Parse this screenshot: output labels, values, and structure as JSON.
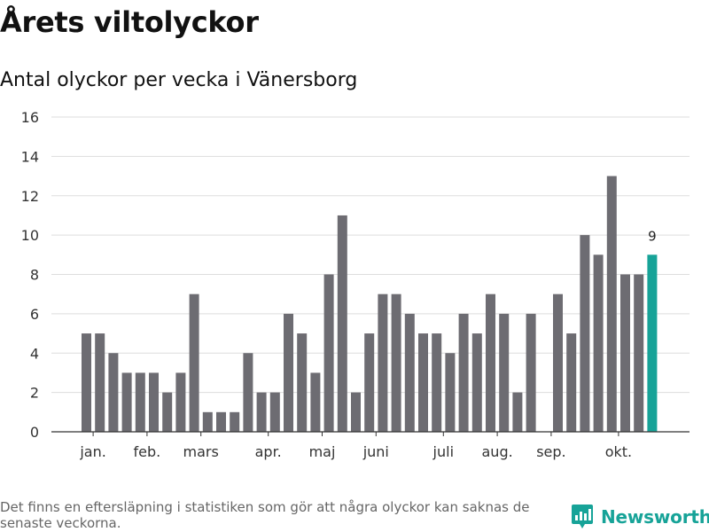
{
  "header": {
    "title": "Årets viltolyckor",
    "subtitle": "Antal olyckor per vecka i Vänersborg"
  },
  "footer": {
    "note": "Det finns en eftersläpning i statistiken som gör att några olyckor kan saknas de senaste veckorna.",
    "brand": "Newsworthy"
  },
  "colors": {
    "bar": "#6d6c72",
    "highlight": "#17a398",
    "grid": "#dddddd",
    "axis": "#333333"
  },
  "chart_data": {
    "type": "bar",
    "title": "Årets viltolyckor",
    "subtitle": "Antal olyckor per vecka i Vänersborg",
    "xlabel": "",
    "ylabel": "",
    "ylim": [
      0,
      16
    ],
    "yticks": [
      0,
      2,
      4,
      6,
      8,
      10,
      12,
      14,
      16
    ],
    "grid": true,
    "weeks": [
      1,
      2,
      3,
      4,
      5,
      6,
      7,
      8,
      9,
      10,
      11,
      12,
      13,
      14,
      15,
      16,
      17,
      18,
      19,
      20,
      21,
      22,
      23,
      24,
      25,
      26,
      27,
      28,
      29,
      30,
      31,
      32,
      33,
      34,
      35,
      36,
      37,
      38,
      39,
      40,
      41,
      42,
      43
    ],
    "values": [
      5,
      5,
      4,
      3,
      3,
      3,
      2,
      3,
      7,
      1,
      1,
      1,
      4,
      2,
      2,
      6,
      5,
      3,
      8,
      11,
      2,
      5,
      7,
      7,
      6,
      5,
      5,
      4,
      6,
      5,
      7,
      6,
      2,
      6,
      0,
      7,
      5,
      10,
      9,
      13,
      8,
      8,
      9
    ],
    "highlight_index": 42,
    "highlight_label": "9",
    "month_labels": [
      {
        "label": "jan.",
        "week": 1.5
      },
      {
        "label": "feb.",
        "week": 5.5
      },
      {
        "label": "mars",
        "week": 9.5
      },
      {
        "label": "apr.",
        "week": 14.5
      },
      {
        "label": "maj",
        "week": 18.5
      },
      {
        "label": "juni",
        "week": 22.5
      },
      {
        "label": "juli",
        "week": 27.5
      },
      {
        "label": "aug.",
        "week": 31.5
      },
      {
        "label": "sep.",
        "week": 35.5
      },
      {
        "label": "okt.",
        "week": 40.5
      }
    ]
  }
}
